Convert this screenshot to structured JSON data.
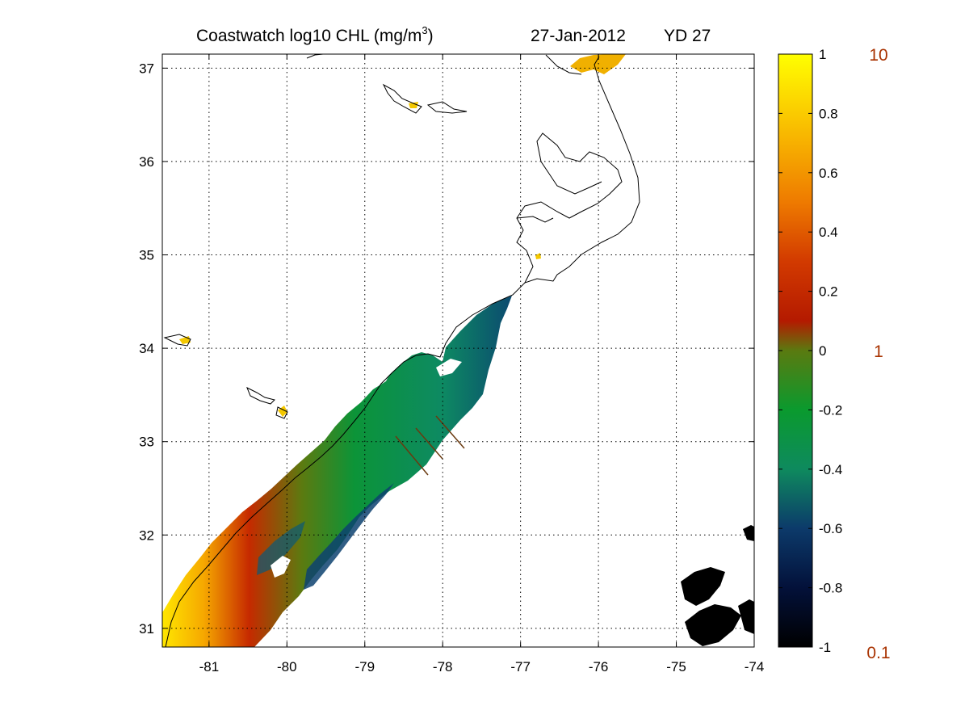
{
  "title": {
    "main": "Coastwatch  log10  CHL (mg/m",
    "superscript": "3",
    "close": ")",
    "date": "27-Jan-2012",
    "yearday": "YD 27"
  },
  "colors": {
    "ratio_labels": "#a83200",
    "grid": "#000000",
    "coast": "#000000"
  },
  "map": {
    "lon_range": [
      -81.6,
      -74
    ],
    "lat_range": [
      30.8,
      37.15
    ],
    "lon_ticks": [
      {
        "value": -81,
        "label": "-81"
      },
      {
        "value": -80,
        "label": "-80"
      },
      {
        "value": -79,
        "label": "-79"
      },
      {
        "value": -78,
        "label": "-78"
      },
      {
        "value": -77,
        "label": "-77"
      },
      {
        "value": -76,
        "label": "-76"
      },
      {
        "value": -75,
        "label": "-75"
      },
      {
        "value": -74,
        "label": "-74"
      }
    ],
    "lat_ticks": [
      {
        "value": 31,
        "label": "31"
      },
      {
        "value": 32,
        "label": "32"
      },
      {
        "value": 33,
        "label": "33"
      },
      {
        "value": 34,
        "label": "34"
      },
      {
        "value": 35,
        "label": "35"
      },
      {
        "value": 36,
        "label": "36"
      },
      {
        "value": 37,
        "label": "37"
      }
    ],
    "grid": true
  },
  "colorbar": {
    "range": [
      -1,
      1
    ],
    "stops": [
      {
        "value": -1.0,
        "color": "#000000"
      },
      {
        "value": -0.8,
        "color": "#03113a"
      },
      {
        "value": -0.6,
        "color": "#0c3a6a"
      },
      {
        "value": -0.4,
        "color": "#0e8a5e"
      },
      {
        "value": -0.2,
        "color": "#0a9a2e"
      },
      {
        "value": 0.0,
        "color": "#5a7a10"
      },
      {
        "value": 0.1,
        "color": "#b41a00"
      },
      {
        "value": 0.3,
        "color": "#d23a00"
      },
      {
        "value": 0.5,
        "color": "#ee7a00"
      },
      {
        "value": 0.7,
        "color": "#f7b000"
      },
      {
        "value": 0.85,
        "color": "#fcd800"
      },
      {
        "value": 1.0,
        "color": "#ffff00"
      }
    ],
    "ticks": [
      {
        "value": 1,
        "label": "1"
      },
      {
        "value": 0.8,
        "label": "0.8"
      },
      {
        "value": 0.6,
        "label": "0.6"
      },
      {
        "value": 0.4,
        "label": "0.4"
      },
      {
        "value": 0.2,
        "label": "0.2"
      },
      {
        "value": 0,
        "label": "0"
      },
      {
        "value": -0.2,
        "label": "-0.2"
      },
      {
        "value": -0.4,
        "label": "-0.4"
      },
      {
        "value": -0.6,
        "label": "-0.6"
      },
      {
        "value": -0.8,
        "label": "-0.8"
      },
      {
        "value": -1,
        "label": "-1"
      }
    ],
    "linear_labels": [
      {
        "value": 1,
        "label": "10"
      },
      {
        "value": 0,
        "label": "1"
      },
      {
        "value": -1,
        "label": "0.1"
      }
    ]
  }
}
